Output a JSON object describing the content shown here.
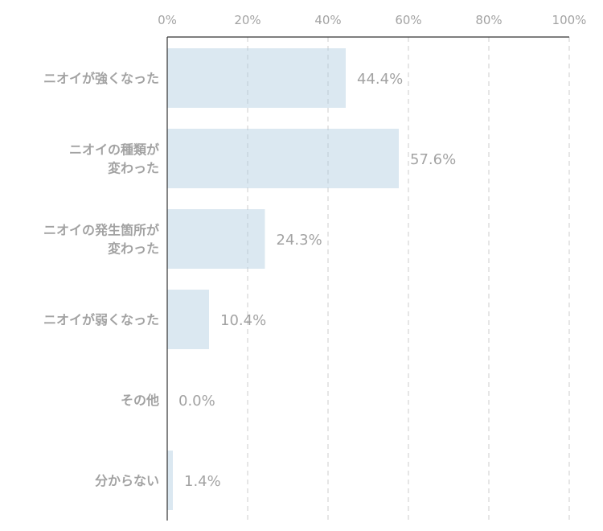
{
  "chart_data": {
    "type": "bar",
    "orientation": "horizontal",
    "categories": [
      [
        "ニオイが強くなった"
      ],
      [
        "ニオイの種類が",
        "変わった"
      ],
      [
        "ニオイの発生箇所が",
        "変わった"
      ],
      [
        "ニオイが弱くなった"
      ],
      [
        "その他"
      ],
      [
        "分からない"
      ]
    ],
    "values": [
      44.4,
      57.6,
      24.3,
      10.4,
      0.0,
      1.4
    ],
    "value_labels": [
      "44.4%",
      "57.6%",
      "24.3%",
      "10.4%",
      "0.0%",
      "1.4%"
    ],
    "xlim": [
      0,
      100
    ],
    "x_ticks": [
      0,
      20,
      40,
      60,
      80,
      100
    ],
    "x_tick_labels": [
      "0%",
      "20%",
      "40%",
      "60%",
      "80%",
      "100%"
    ],
    "axis_position": "top",
    "grid": true,
    "colors": {
      "bar": "#b0cbe1",
      "axis": "#333333",
      "grid": "#cccccc",
      "text": "#333333"
    }
  }
}
